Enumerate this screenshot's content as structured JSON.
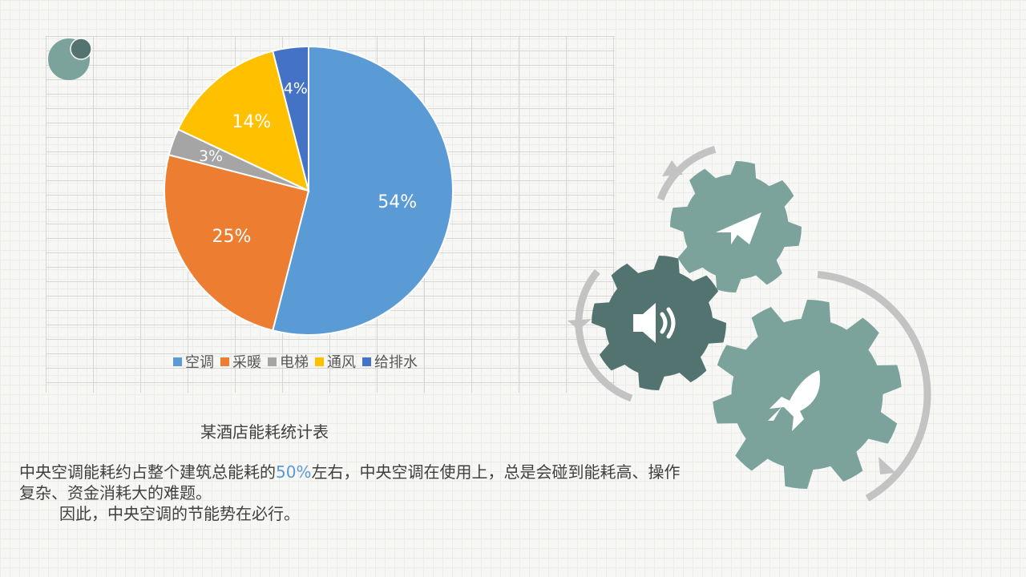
{
  "chart_data": {
    "type": "pie",
    "title": "某酒店能耗统计表",
    "categories": [
      "空调",
      "采暖",
      "电梯",
      "通风",
      "给排水"
    ],
    "values": [
      54,
      25,
      3,
      14,
      4
    ],
    "labels": [
      "54%",
      "25%",
      "3%",
      "14%",
      "4%"
    ],
    "colors": [
      "#5b9bd5",
      "#ed7d31",
      "#a5a5a5",
      "#ffc000",
      "#4472c4"
    ],
    "legend": "bottom",
    "grid": true
  },
  "text": {
    "para1_a": "中央空调能耗约占整个建筑总能耗的",
    "para1_hl": "50%",
    "para1_b": "左右，中央空调在使用上，总是会碰到能耗高、操作复杂、资金消耗大的难题。",
    "para2": "因此，中央空调的节能势在必行。"
  },
  "decor": {
    "gear_color": "#7ba39c",
    "gear_dark_color": "#52736f",
    "arrow_color": "#c3c3c3",
    "icons": [
      "paper-plane-icon",
      "speaker-icon",
      "rocket-icon"
    ]
  }
}
